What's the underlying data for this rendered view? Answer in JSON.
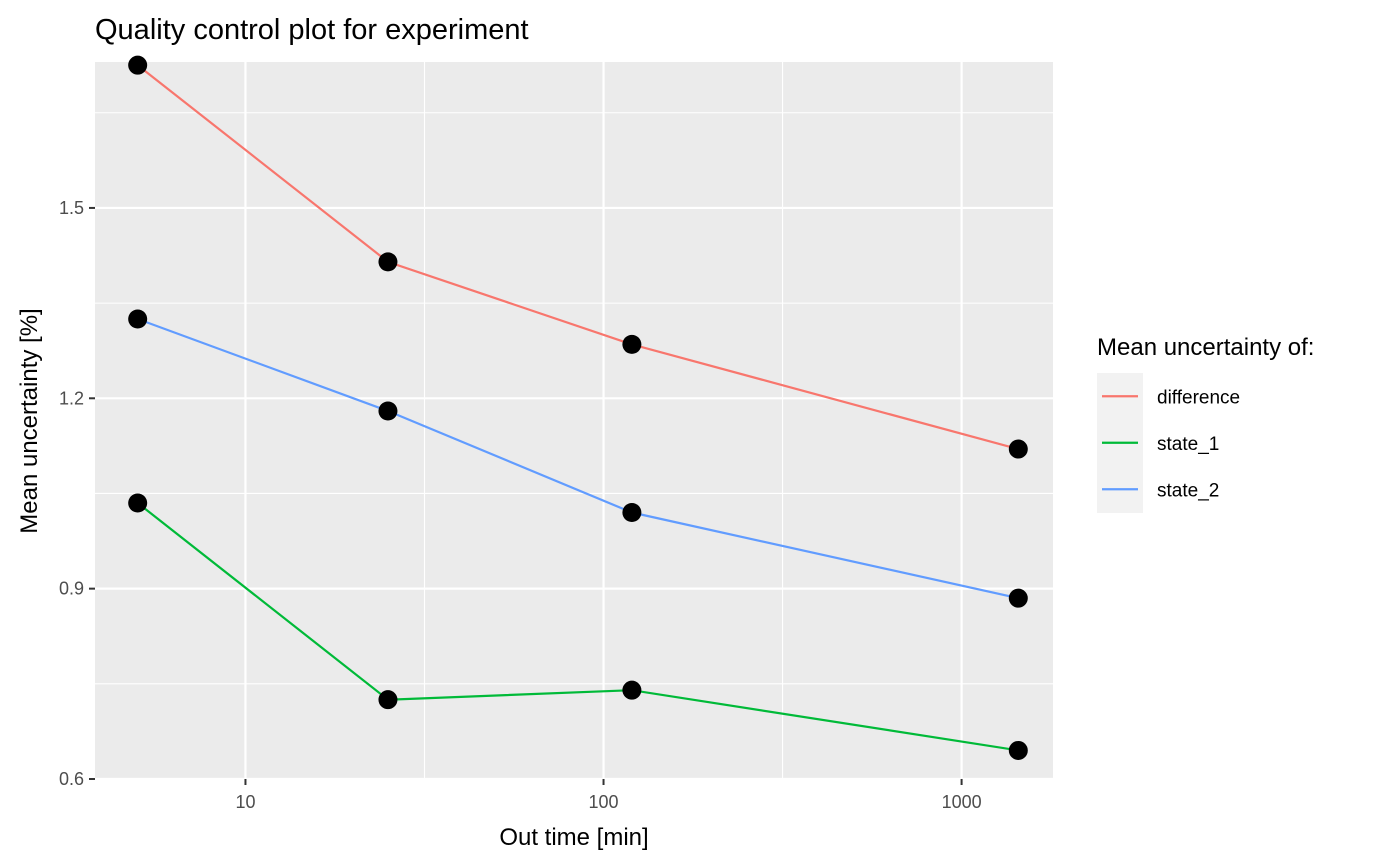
{
  "chart_data": {
    "type": "line",
    "title": "Quality control plot for experiment",
    "xlabel": "Out time [min]",
    "ylabel": "Mean uncertainty [%]",
    "x_scale": "log10",
    "x": [
      5,
      25,
      120,
      1440
    ],
    "xlim": [
      3.8,
      1800
    ],
    "ylim": [
      0.6,
      1.73
    ],
    "x_ticks": [
      10,
      100,
      1000
    ],
    "x_tick_labels": [
      "10",
      "100",
      "1000"
    ],
    "y_ticks": [
      0.6,
      0.9,
      1.2,
      1.5
    ],
    "y_tick_labels": [
      "0.6",
      "0.9",
      "1.2",
      "1.5"
    ],
    "grid": true,
    "legend": {
      "title": "Mean uncertainty of:",
      "position": "right"
    },
    "series": [
      {
        "name": "difference",
        "color": "#F8766D",
        "values": [
          1.725,
          1.415,
          1.285,
          1.12
        ]
      },
      {
        "name": "state_1",
        "color": "#00BA38",
        "values": [
          1.035,
          0.725,
          0.74,
          0.645
        ]
      },
      {
        "name": "state_2",
        "color": "#619CFF",
        "values": [
          1.325,
          1.18,
          1.02,
          0.885
        ]
      }
    ],
    "point_color": "#000000"
  }
}
